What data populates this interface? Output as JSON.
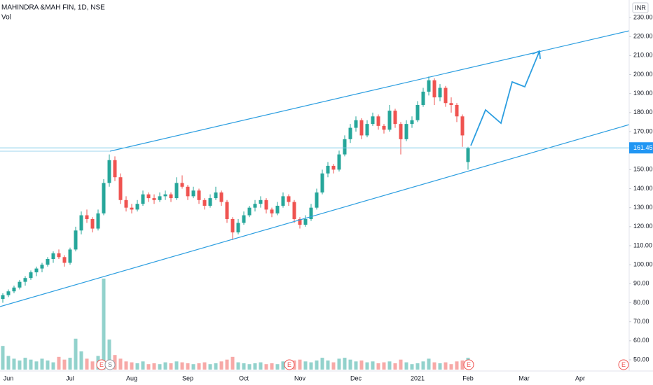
{
  "chart_data": {
    "type": "candlestick",
    "title": "MAHINDRA &MAH FIN, 1D, NSE",
    "volume_label": "Vol",
    "currency": "INR",
    "last_price": 161.45,
    "events": [
      "E",
      "S",
      "E",
      "E",
      "E"
    ],
    "categories": [
      null,
      "Jun",
      null,
      null,
      null,
      null,
      null,
      null,
      null,
      null,
      null,
      null,
      "Jul",
      null,
      null,
      null,
      null,
      null,
      null,
      null,
      null,
      null,
      null,
      "Aug",
      null,
      null,
      null,
      null,
      null,
      null,
      null,
      null,
      null,
      "Sep",
      null,
      null,
      null,
      null,
      null,
      null,
      null,
      null,
      null,
      "Oct",
      null,
      null,
      null,
      null,
      null,
      null,
      null,
      null,
      null,
      "Nov",
      null,
      null,
      null,
      null,
      null,
      null,
      null,
      null,
      null,
      "Dec",
      null,
      null,
      null,
      null,
      null,
      null,
      null,
      null,
      null,
      null,
      "2021",
      null,
      null,
      null,
      null,
      null,
      null,
      null,
      null,
      "Feb",
      null,
      null,
      null,
      null,
      null,
      null,
      null,
      null,
      null,
      "Mar",
      null,
      null,
      null,
      null,
      null,
      null,
      null,
      null,
      null,
      "Apr",
      null,
      null,
      null,
      null,
      null,
      null,
      null,
      null
    ],
    "ohlc": [
      [
        82,
        85,
        80,
        84
      ],
      [
        84,
        87,
        83,
        86
      ],
      [
        86,
        89,
        85,
        88
      ],
      [
        88,
        92,
        87,
        91
      ],
      [
        91,
        94,
        89,
        93
      ],
      [
        93,
        97,
        92,
        96
      ],
      [
        96,
        99,
        94,
        98
      ],
      [
        98,
        101,
        96,
        100
      ],
      [
        100,
        104,
        99,
        103
      ],
      [
        103,
        107,
        101,
        106
      ],
      [
        106,
        108,
        103,
        104
      ],
      [
        104,
        105,
        99,
        101
      ],
      [
        101,
        109,
        100,
        108
      ],
      [
        108,
        120,
        107,
        118
      ],
      [
        118,
        128,
        116,
        126
      ],
      [
        126,
        129,
        122,
        124
      ],
      [
        124,
        125,
        117,
        119
      ],
      [
        119,
        129,
        118,
        127
      ],
      [
        127,
        145,
        126,
        143
      ],
      [
        143,
        158,
        141,
        155
      ],
      [
        155,
        157,
        144,
        146
      ],
      [
        146,
        148,
        132,
        134
      ],
      [
        134,
        136,
        128,
        130
      ],
      [
        130,
        132,
        127,
        129
      ],
      [
        129,
        134,
        128,
        132
      ],
      [
        132,
        139,
        131,
        137
      ],
      [
        137,
        138,
        133,
        135
      ],
      [
        135,
        137,
        132,
        134
      ],
      [
        134,
        138,
        133,
        136
      ],
      [
        136,
        139,
        134,
        137
      ],
      [
        137,
        138,
        133,
        135
      ],
      [
        135,
        146,
        134,
        143
      ],
      [
        143,
        147,
        140,
        141
      ],
      [
        141,
        142,
        134,
        136
      ],
      [
        136,
        141,
        135,
        139
      ],
      [
        139,
        140,
        132,
        134
      ],
      [
        134,
        135,
        129,
        131
      ],
      [
        131,
        137,
        130,
        135
      ],
      [
        135,
        141,
        134,
        138
      ],
      [
        138,
        139,
        131,
        133
      ],
      [
        133,
        134,
        122,
        124
      ],
      [
        124,
        125,
        113,
        117
      ],
      [
        117,
        124,
        116,
        122
      ],
      [
        122,
        128,
        121,
        126
      ],
      [
        126,
        131,
        125,
        130
      ],
      [
        130,
        134,
        128,
        132
      ],
      [
        132,
        136,
        130,
        134
      ],
      [
        134,
        135,
        127,
        129
      ],
      [
        129,
        130,
        125,
        127
      ],
      [
        127,
        133,
        126,
        131
      ],
      [
        131,
        138,
        130,
        136
      ],
      [
        136,
        137,
        131,
        133
      ],
      [
        133,
        134,
        122,
        124
      ],
      [
        124,
        125,
        119,
        121
      ],
      [
        121,
        126,
        120,
        124
      ],
      [
        124,
        132,
        123,
        130
      ],
      [
        130,
        140,
        129,
        138
      ],
      [
        138,
        150,
        137,
        148
      ],
      [
        148,
        154,
        146,
        152
      ],
      [
        152,
        153,
        148,
        150
      ],
      [
        150,
        160,
        149,
        158
      ],
      [
        158,
        168,
        157,
        166
      ],
      [
        166,
        174,
        164,
        172
      ],
      [
        172,
        178,
        170,
        176
      ],
      [
        176,
        177,
        166,
        168
      ],
      [
        168,
        176,
        167,
        174
      ],
      [
        174,
        180,
        173,
        178
      ],
      [
        178,
        179,
        171,
        173
      ],
      [
        173,
        174,
        169,
        171
      ],
      [
        171,
        184,
        170,
        181
      ],
      [
        181,
        182,
        172,
        174
      ],
      [
        174,
        175,
        158,
        166
      ],
      [
        166,
        176,
        165,
        174
      ],
      [
        174,
        178,
        172,
        176
      ],
      [
        176,
        186,
        175,
        184
      ],
      [
        184,
        193,
        183,
        191
      ],
      [
        191,
        199,
        189,
        197
      ],
      [
        197,
        198,
        184,
        188
      ],
      [
        188,
        195,
        186,
        193
      ],
      [
        193,
        194,
        183,
        185
      ],
      [
        185,
        188,
        180,
        184
      ],
      [
        184,
        185,
        175,
        178
      ],
      [
        178,
        179,
        162,
        168
      ],
      [
        154,
        162,
        150,
        161.45
      ],
      null,
      null,
      null,
      null,
      null,
      null,
      null,
      null,
      null,
      null,
      null,
      null,
      null,
      null,
      null,
      null,
      null,
      null,
      null,
      null,
      null,
      null,
      null,
      null,
      null,
      null,
      null,
      null
    ],
    "volume": [
      2.6,
      1.5,
      1.2,
      1.0,
      1.3,
      1.1,
      0.9,
      1.2,
      1.0,
      0.8,
      1.4,
      1.1,
      1.3,
      3.4,
      2.0,
      1.2,
      0.9,
      1.5,
      10,
      3.3,
      1.6,
      1.2,
      0.9,
      0.8,
      0.7,
      0.9,
      0.6,
      0.7,
      0.6,
      0.8,
      0.7,
      0.9,
      0.8,
      0.7,
      0.6,
      0.7,
      0.8,
      0.6,
      0.7,
      0.9,
      1.1,
      1.4,
      0.8,
      0.7,
      0.6,
      0.7,
      0.8,
      0.6,
      0.7,
      0.6,
      0.9,
      0.7,
      1.0,
      1.1,
      0.9,
      0.8,
      1.0,
      1.3,
      1.0,
      0.8,
      1.2,
      1.3,
      1.1,
      0.9,
      1.0,
      0.8,
      0.9,
      0.7,
      0.8,
      0.9,
      0.7,
      1.1,
      0.8,
      0.6,
      0.7,
      0.9,
      1.2,
      0.8,
      0.7,
      0.8,
      0.6,
      0.9,
      1.0,
      1.3,
      null,
      null,
      null,
      null,
      null,
      null,
      null,
      null,
      null,
      null,
      null,
      null,
      null,
      null,
      null,
      null,
      null,
      null,
      null,
      null,
      null,
      null,
      null,
      null,
      null,
      null,
      null,
      null
    ],
    "ylim": [
      50,
      230
    ],
    "yticks": [
      {
        "value": 230,
        "label": "230.00"
      },
      {
        "value": 220,
        "label": "220.00"
      },
      {
        "value": 210,
        "label": "210.00"
      },
      {
        "value": 200,
        "label": "200.00"
      },
      {
        "value": 190,
        "label": "190.00"
      },
      {
        "value": 180,
        "label": "180.00"
      },
      {
        "value": 170,
        "label": "170.00"
      },
      {
        "value": 160,
        "label": "160.00"
      },
      {
        "value": 150,
        "label": "150.00"
      },
      {
        "value": 140,
        "label": "140.00"
      },
      {
        "value": 130,
        "label": "130.00"
      },
      {
        "value": 120,
        "label": "120.00"
      },
      {
        "value": 110,
        "label": "110.00"
      },
      {
        "value": 100,
        "label": "100.00"
      },
      {
        "value": 90,
        "label": "90.00"
      },
      {
        "value": 80,
        "label": "80.00"
      },
      {
        "value": 70,
        "label": "70.00"
      },
      {
        "value": 60,
        "label": "60.00"
      },
      {
        "value": 50,
        "label": "50.00"
      }
    ],
    "up_color": "#26a69a",
    "down_color": "#ef5350",
    "grid": false
  }
}
